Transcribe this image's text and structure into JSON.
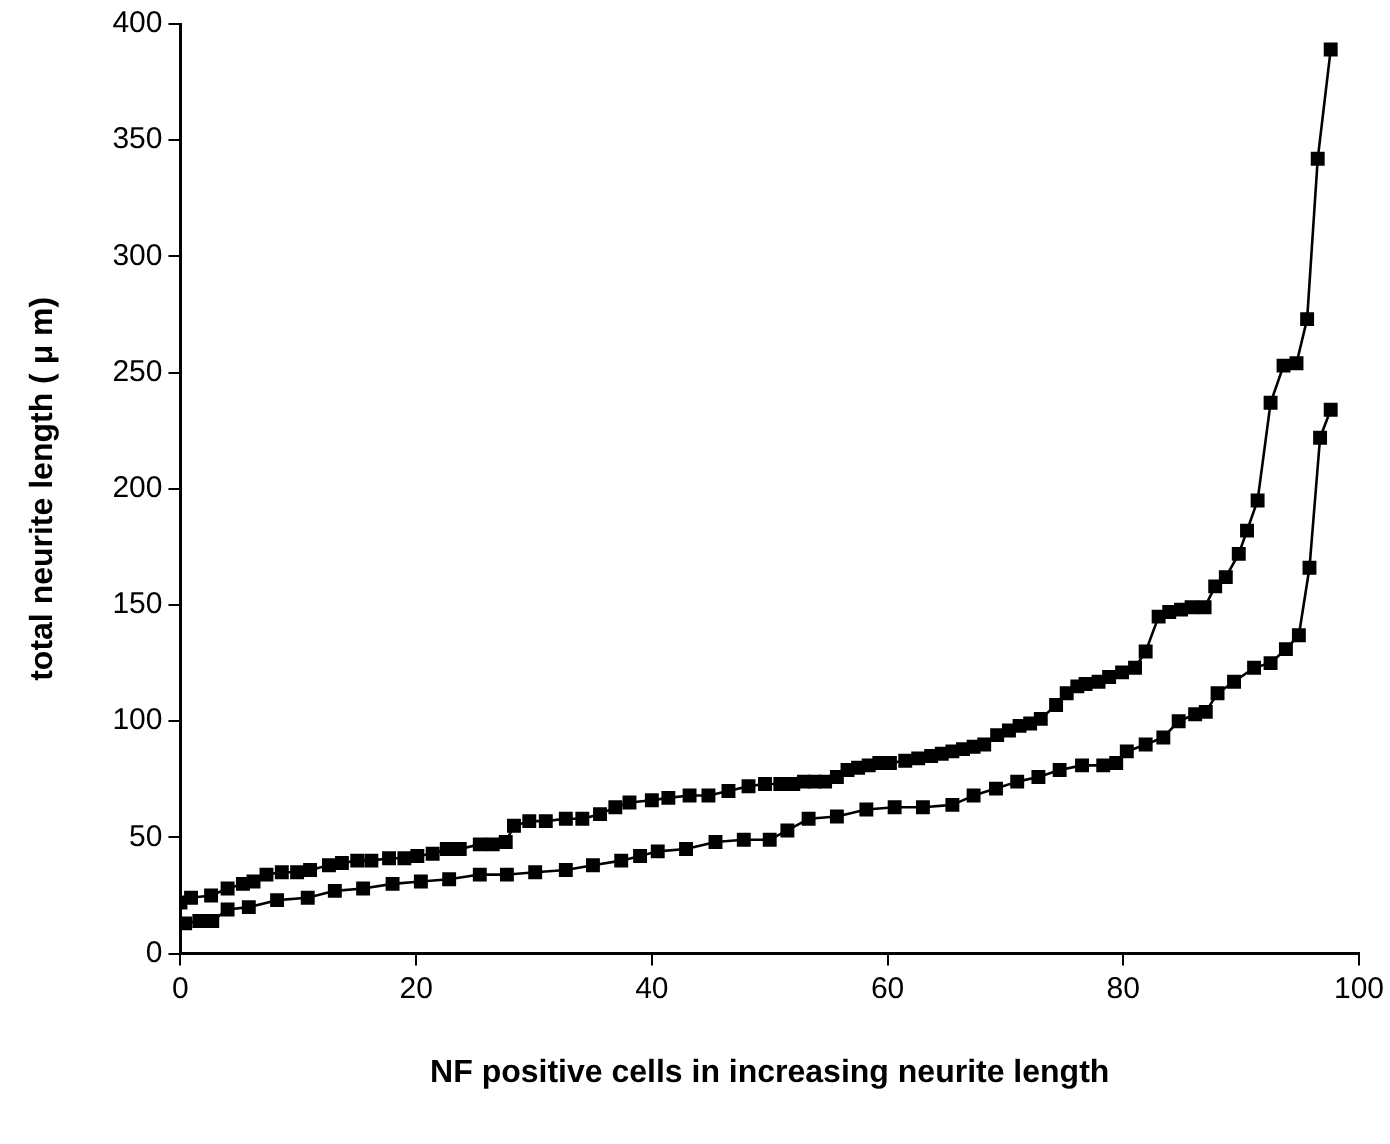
{
  "chart_data": {
    "type": "line",
    "xlabel": "NF positive cells in increasing neurite length",
    "ylabel": "total neurite length ( μ m)",
    "xlim": [
      0,
      100
    ],
    "xticks": [
      0,
      20,
      40,
      60,
      80,
      100
    ],
    "ylim": [
      0,
      400
    ],
    "yticks": [
      0,
      50,
      100,
      150,
      200,
      250,
      300,
      350,
      400
    ],
    "grid": false,
    "legend": false,
    "marker": "square",
    "line_style": "solid",
    "series": [
      {
        "color": "#000000",
        "x": [
          0,
          0.9,
          2.6,
          4.0,
          5.3,
          6.2,
          7.3,
          8.6,
          9.9,
          11,
          12.6,
          13.7,
          15,
          16.2,
          17.7,
          19,
          20.1,
          21.4,
          22.6,
          23.7,
          25.4,
          26.5,
          27.6,
          28.3,
          29.6,
          31,
          32.7,
          34.1,
          35.6,
          36.9,
          38.1,
          40,
          41.4,
          43.2,
          44.8,
          46.5,
          48.2,
          49.6,
          50.9,
          52.0,
          52.9,
          53.8,
          54.7,
          55.7,
          56.6,
          57.5,
          58.4,
          59.3,
          60.2,
          61.5,
          62.6,
          63.7,
          64.6,
          65.5,
          66.4,
          67.3,
          68.2,
          69.3,
          70.3,
          71.2,
          72.1,
          73.0,
          74.3,
          75.2,
          76.1,
          76.8,
          77.9,
          78.8,
          79.9,
          81.0,
          81.9,
          83.0,
          83.9,
          84.9,
          85.8,
          86.9,
          87.8,
          88.7,
          89.8,
          90.5,
          91.4,
          92.5,
          93.6,
          94.7,
          95.6,
          96.5,
          97.6
        ],
        "values": [
          22,
          24,
          25,
          28,
          30,
          31,
          34,
          35,
          35,
          36,
          38,
          39,
          40,
          40,
          41,
          41,
          42,
          43,
          45,
          45,
          47,
          47,
          48,
          55,
          57,
          57,
          58,
          58,
          60,
          63,
          65,
          66,
          67,
          68,
          68,
          70,
          72,
          73,
          73,
          73,
          74,
          74,
          74,
          76,
          79,
          80,
          81,
          82,
          82,
          83,
          84,
          85,
          86,
          87,
          88,
          89,
          90,
          94,
          96,
          98,
          99,
          101,
          107,
          112,
          115,
          116,
          117,
          119,
          121,
          123,
          130,
          145,
          147,
          148,
          149,
          149,
          158,
          162,
          172,
          182,
          195,
          237,
          253,
          254,
          273,
          342,
          389
        ]
      },
      {
        "color": "#000000",
        "x": [
          0.4,
          1.6,
          2.7,
          4,
          5.8,
          8.2,
          10.8,
          13.1,
          15.5,
          18,
          20.4,
          22.8,
          25.4,
          27.7,
          30.1,
          32.7,
          35,
          37.4,
          39,
          40.5,
          42.9,
          45.4,
          47.8,
          50,
          51.5,
          53.3,
          55.7,
          58.2,
          60.6,
          63,
          65.5,
          67.3,
          69.2,
          71,
          72.8,
          74.6,
          76.5,
          78.3,
          79.4,
          80.3,
          81.9,
          83.4,
          84.7,
          86.1,
          87,
          88,
          89.4,
          91.1,
          92.5,
          93.8,
          94.9,
          95.8,
          96.7,
          97.6
        ],
        "values": [
          13,
          14,
          14,
          19,
          20,
          23,
          24,
          27,
          28,
          30,
          31,
          32,
          34,
          34,
          35,
          36,
          38,
          40,
          42,
          44,
          45,
          48,
          49,
          49,
          53,
          58,
          59,
          62,
          63,
          63,
          64,
          68,
          71,
          74,
          76,
          79,
          81,
          81,
          82,
          87,
          90,
          93,
          100,
          103,
          104,
          112,
          117,
          123,
          125,
          131,
          137,
          166,
          222,
          234
        ]
      }
    ]
  }
}
